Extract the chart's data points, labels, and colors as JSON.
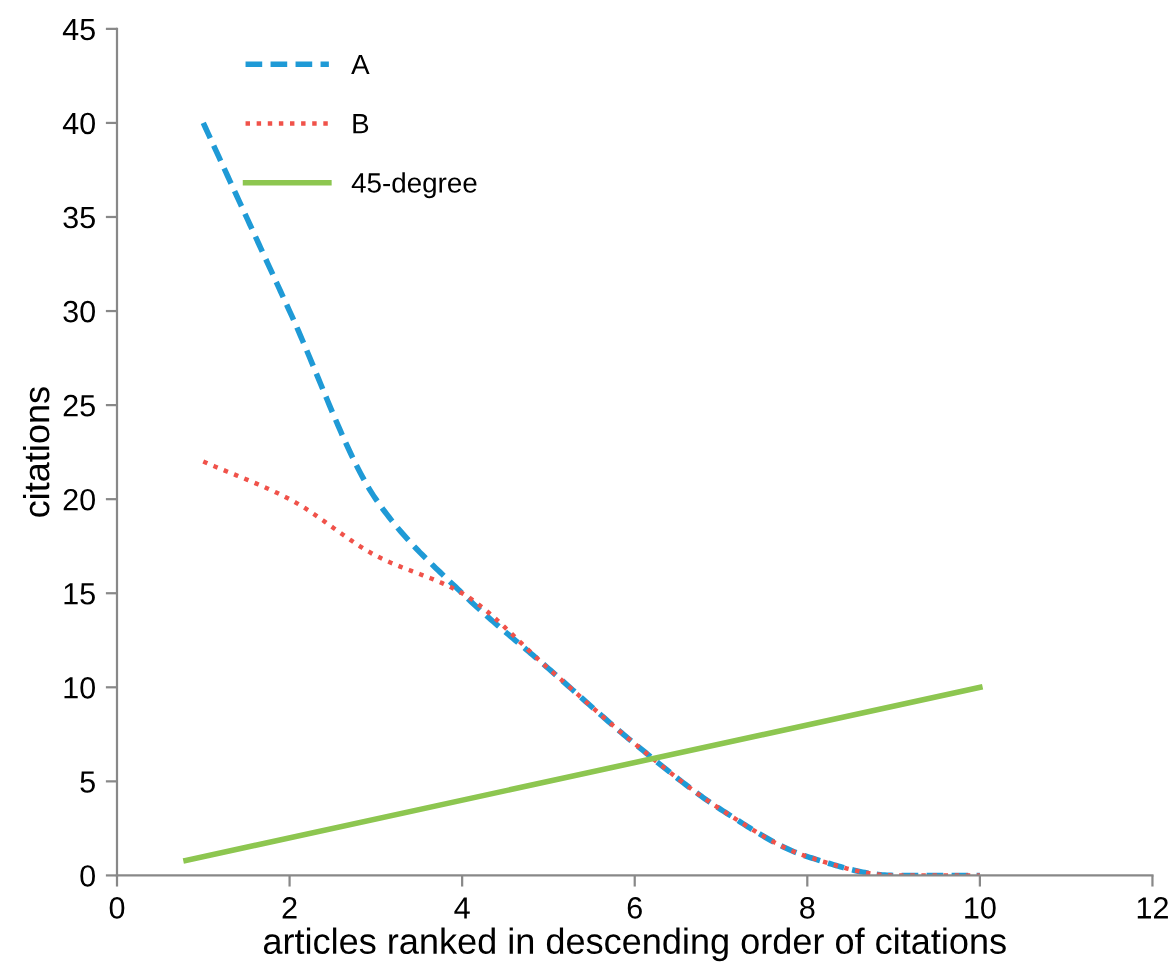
{
  "chart_data": {
    "type": "line",
    "xlabel": "articles ranked in descending order of citations",
    "ylabel": "citations",
    "xlim": [
      0,
      12
    ],
    "xticks": [
      0,
      2,
      4,
      6,
      8,
      10,
      12
    ],
    "ylim": [
      0,
      45
    ],
    "yticks": [
      0,
      5,
      10,
      15,
      20,
      25,
      30,
      35,
      40,
      45
    ],
    "grid": false,
    "legend": "top left",
    "marker": "none",
    "series": [
      {
        "name": "A",
        "color": "#1f9ad6",
        "line_style": "dashed",
        "x": [
          1,
          2,
          3,
          4,
          5,
          6,
          7,
          8,
          9,
          10
        ],
        "values": [
          40,
          30,
          20,
          15,
          11,
          7,
          3.5,
          1,
          0,
          0
        ]
      },
      {
        "name": "B",
        "color": "#f0524a",
        "line_style": "dotted",
        "x": [
          1,
          2,
          3,
          4,
          5,
          6,
          7,
          8,
          9,
          10
        ],
        "values": [
          22,
          20,
          17,
          15,
          11,
          7,
          3.5,
          1,
          0,
          0
        ]
      },
      {
        "name": "45-degree",
        "color": "#8dc650",
        "line_style": "solid",
        "x": [
          0.8,
          10
        ],
        "values": [
          0.8,
          10
        ]
      }
    ]
  }
}
